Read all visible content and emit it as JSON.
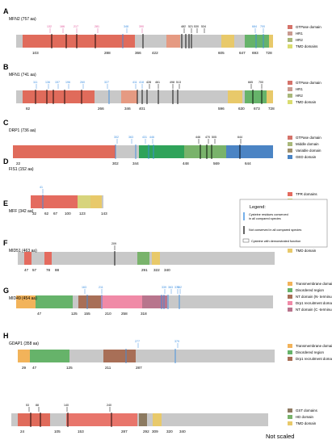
{
  "colors": {
    "bar_gray": "#c8c8c8",
    "gtpase": "#e06b5b",
    "hr1": "#e59a82",
    "hr2": "#e7ad9a",
    "tmd": "#e8c96a",
    "middle": "#b9a87e",
    "variable": "#9e8f6c",
    "ged": "#4b84c4",
    "tpr": "#e46b5f",
    "repeated": "#8f7b63",
    "coiled": "#79b36b",
    "transmembrane": "#f2b35a",
    "disordered": "#66b36a",
    "nt_n": "#a86f57",
    "drp1_recruit": "#f08aa7",
    "nt_c": "#b8758d",
    "gst": "#e8756b",
    "hd": "#8c7a60",
    "cys_conserved": "#3b8ee0",
    "cys_not_conserved": "#000000",
    "cys_label_pink": "#e0579a",
    "cys_label_blue": "#3b8ee0"
  },
  "panels": [
    {
      "letter": "A",
      "name": "MFN2 (757 aa)",
      "legend": [
        {
          "label": "GTPase domain",
          "color": "#d5736a"
        },
        {
          "label": "HR1",
          "color": "#c99a8f"
        },
        {
          "label": "HR2",
          "color": "#a9b87a"
        },
        {
          "label": "TMD domains",
          "color": "#d9dc6f"
        }
      ],
      "bounds": [
        "103",
        "288",
        "366",
        "422",
        "605",
        "647",
        "693",
        "728"
      ],
      "cys_labels": [
        "132",
        "166",
        "217",
        "281",
        "348",
        "390",
        "482",
        "521",
        "530",
        "534",
        "684",
        "700"
      ]
    },
    {
      "letter": "B",
      "name": "MFN1 (741 aa)",
      "legend": [
        {
          "label": "GTPase domain",
          "color": "#d5736a"
        },
        {
          "label": "HR1",
          "color": "#c99a8f"
        },
        {
          "label": "HR2",
          "color": "#a9b87a"
        },
        {
          "label": "TMD domain",
          "color": "#d9dc6f"
        }
      ],
      "bounds": [
        "82",
        "266",
        "346",
        "401",
        "596",
        "630",
        "673",
        "728"
      ],
      "cys_labels": [
        "111",
        "136",
        "157",
        "196",
        "260",
        "327",
        "411",
        "418",
        "428",
        "461",
        "498",
        "513",
        "665",
        "700"
      ]
    },
    {
      "letter": "C",
      "name": "DRP1 (736 aa)",
      "legend": [
        {
          "label": "GTPase domain",
          "color": "#d5736a"
        },
        {
          "label": "Middle domain",
          "color": "#a9b87a"
        },
        {
          "label": "Variable domain",
          "color": "#9e8f6c"
        },
        {
          "label": "GED domain",
          "color": "#4b84c4"
        }
      ],
      "bounds": [
        "22",
        "302",
        "344",
        "448",
        "569",
        "644"
      ],
      "cys_labels": [
        "302",
        "363",
        "431",
        "446",
        "446",
        "470",
        "505",
        "644"
      ]
    },
    {
      "letter": "D",
      "name": "FIS1 (152 aa)",
      "legend": [
        {
          "label": "TPR domains",
          "color": "#e46b5f"
        },
        {
          "label": "TMD domain",
          "color": "#d9dc6f"
        }
      ],
      "bounds": [
        "32",
        "62",
        "67",
        "100",
        "123",
        "143"
      ],
      "cys_labels": [
        "41"
      ]
    },
    {
      "letter": "E",
      "name": "MFF (342 aa)",
      "legend": [
        {
          "label": "Repeated domains",
          "color": "#8f7b63"
        },
        {
          "label": "Coiled coil domain",
          "color": "#79b36b"
        },
        {
          "label": "TMD domain",
          "color": "#e8c96a"
        }
      ],
      "bounds": [
        "47",
        "57",
        "78",
        "88",
        "291",
        "322",
        "340"
      ],
      "cys_labels": [
        "209"
      ]
    },
    {
      "letter": "F",
      "name": "MID51 (463 aa)",
      "legend": [
        {
          "label": "Transmembrane domain",
          "color": "#f2b35a"
        },
        {
          "label": "Disordered region",
          "color": "#66b36a"
        },
        {
          "label": "NT domain (N- terminus)",
          "color": "#a86f57"
        },
        {
          "label": "Drp1 recruitment domain",
          "color": "#f08aa7"
        },
        {
          "label": "NT domain (C -terminus)",
          "color": "#b8758d"
        }
      ],
      "bounds": [
        "47",
        "125",
        "155",
        "210",
        "258",
        "318"
      ],
      "cys_labels": [
        "163",
        "211",
        "339",
        "363",
        "371",
        "452"
      ]
    },
    {
      "letter": "G",
      "name": "MID49 (454 aa)",
      "legend": [
        {
          "label": "Transmembrane domain",
          "color": "#f2b35a"
        },
        {
          "label": "Disordered region",
          "color": "#66b36a"
        },
        {
          "label": "Drp1 recruitment domain",
          "color": "#a86f57"
        }
      ],
      "bounds": [
        "29",
        "47",
        "125",
        "211",
        "287"
      ],
      "cys_labels": [
        "277",
        "379"
      ]
    },
    {
      "letter": "H",
      "name": "GDAP1 (358 aa)",
      "legend": [
        {
          "label": "GST domains",
          "color": "#8f7b63"
        },
        {
          "label": "HD domain",
          "color": "#79b36b"
        },
        {
          "label": "TMD domain",
          "color": "#e8c96a"
        }
      ],
      "bounds": [
        "24",
        "105",
        "153",
        "287",
        "292",
        "309",
        "320",
        "340"
      ],
      "cys_labels": [
        "53",
        "88",
        "140",
        "240"
      ]
    }
  ],
  "key": {
    "title": "Legend:",
    "items": [
      "Cysteine residues conserved in all compared species",
      "Not conserved in all compared species",
      "Cysteine with demonstrated function"
    ]
  },
  "not_scaled": "Not scaled"
}
